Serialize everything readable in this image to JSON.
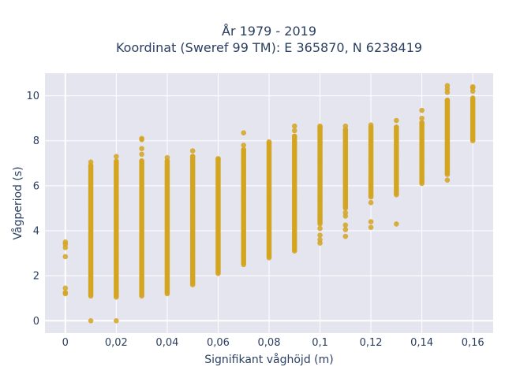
{
  "chart_data": {
    "type": "scatter",
    "title_line1": "År 1979 - 2019",
    "title_line2": "Koordinat (Sweref 99 TM): E 365870, N 6238419",
    "xlabel": "Signifikant våghöjd (m)",
    "ylabel": "Vågperiod (s)",
    "xlim": [
      -0.008,
      0.168
    ],
    "ylim": [
      -0.55,
      11.0
    ],
    "xticks": [
      0,
      0.02,
      0.04,
      0.06,
      0.08,
      0.1,
      0.12,
      0.14,
      0.16
    ],
    "xtick_labels": [
      "0",
      "0,02",
      "0,04",
      "0,06",
      "0,08",
      "0,1",
      "0,12",
      "0,14",
      "0,16"
    ],
    "yticks": [
      0,
      2,
      4,
      6,
      8,
      10
    ],
    "ytick_labels": [
      "0",
      "2",
      "4",
      "6",
      "8",
      "10"
    ],
    "grid": true,
    "background_color": "#e5e5f0",
    "marker_color": "#d4a420",
    "columns": [
      {
        "x": 0.0,
        "ranges": [],
        "points": [
          1.2,
          1.25,
          1.45,
          2.85,
          3.25,
          3.4,
          3.5
        ]
      },
      {
        "x": 0.01,
        "ranges": [
          [
            1.1,
            6.9
          ]
        ],
        "points": [
          0.0,
          7.05
        ]
      },
      {
        "x": 0.02,
        "ranges": [
          [
            1.05,
            7.1
          ]
        ],
        "points": [
          0.0,
          7.3
        ]
      },
      {
        "x": 0.03,
        "ranges": [
          [
            1.1,
            7.1
          ]
        ],
        "points": [
          7.4,
          7.65,
          8.05,
          8.1
        ]
      },
      {
        "x": 0.04,
        "ranges": [
          [
            1.2,
            7.1
          ]
        ],
        "points": [
          7.25
        ]
      },
      {
        "x": 0.05,
        "ranges": [
          [
            1.6,
            7.3
          ]
        ],
        "points": [
          7.55
        ]
      },
      {
        "x": 0.06,
        "ranges": [
          [
            2.1,
            7.2
          ]
        ],
        "points": []
      },
      {
        "x": 0.07,
        "ranges": [
          [
            2.5,
            7.6
          ]
        ],
        "points": [
          7.8,
          8.35
        ]
      },
      {
        "x": 0.08,
        "ranges": [
          [
            2.8,
            7.95
          ]
        ],
        "points": []
      },
      {
        "x": 0.09,
        "ranges": [
          [
            3.1,
            8.2
          ]
        ],
        "points": [
          8.45,
          8.65
        ]
      },
      {
        "x": 0.1,
        "ranges": [
          [
            4.3,
            8.6
          ]
        ],
        "points": [
          3.45,
          3.6,
          3.8,
          4.1,
          8.65
        ]
      },
      {
        "x": 0.11,
        "ranges": [
          [
            5.0,
            8.5
          ]
        ],
        "points": [
          3.75,
          4.05,
          4.25,
          4.65,
          4.8,
          8.65
        ]
      },
      {
        "x": 0.12,
        "ranges": [
          [
            5.5,
            8.6
          ]
        ],
        "points": [
          4.15,
          4.4,
          5.25,
          8.7
        ]
      },
      {
        "x": 0.13,
        "ranges": [
          [
            5.6,
            8.6
          ]
        ],
        "points": [
          4.3,
          8.9
        ]
      },
      {
        "x": 0.14,
        "ranges": [
          [
            6.1,
            8.8
          ]
        ],
        "points": [
          9.0,
          9.35
        ]
      },
      {
        "x": 0.15,
        "ranges": [
          [
            6.5,
            9.8
          ]
        ],
        "points": [
          6.25,
          10.15,
          10.3,
          10.45
        ]
      },
      {
        "x": 0.16,
        "ranges": [
          [
            8.0,
            9.9
          ]
        ],
        "points": [
          10.2,
          10.35,
          10.4
        ]
      }
    ]
  }
}
